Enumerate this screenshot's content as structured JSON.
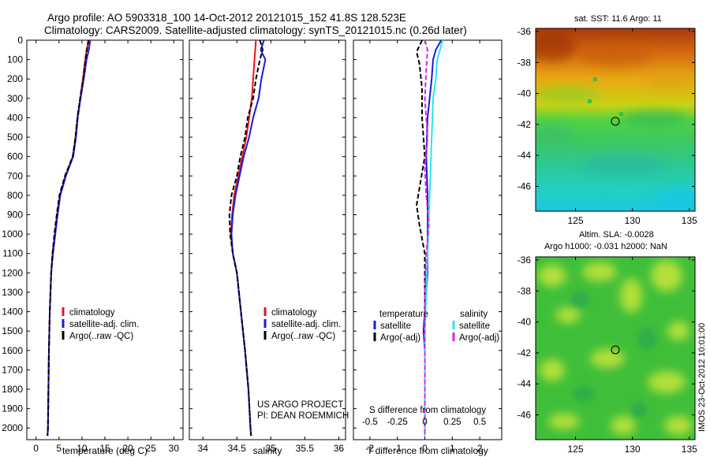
{
  "header": {
    "line1": "Argo profile: AO 5903318_100 14-Oct-2012 20121015_152 41.8S 128.523E",
    "line2": "Climatology: CARS2009. Satellite-adjusted climatology: synTS_20121015.nc (0.26d later)"
  },
  "colors": {
    "red": "#e8141e",
    "blue": "#1a1adc",
    "black": "#000000",
    "cyan": "#26e6f2",
    "magenta": "#e61ee6"
  },
  "depth_ticks": [
    0,
    100,
    200,
    300,
    400,
    500,
    600,
    700,
    800,
    900,
    1000,
    1100,
    1200,
    1300,
    1400,
    1500,
    1600,
    1700,
    1800,
    1900,
    2000
  ],
  "chart_data": [
    {
      "id": "temperature",
      "type": "line",
      "xlabel": "temperature (deg C)",
      "xlim": [
        -2,
        32
      ],
      "ylim": [
        0,
        2060
      ],
      "y_reversed": true,
      "xticks": [
        0,
        5,
        10,
        15,
        20,
        25,
        30
      ],
      "xtick_labels": [
        "0",
        "5",
        "10",
        "15",
        "20",
        "25",
        "30"
      ],
      "legend": [
        "climatology",
        "satellite-adj. clim.",
        "Argo(..raw -QC)"
      ],
      "series": [
        {
          "name": "climatology",
          "color": "red",
          "dash": "",
          "x": [
            11.5,
            11.0,
            10.7,
            10.2,
            9.6,
            9.0,
            8.6,
            8.0,
            6.4,
            5.2,
            4.6,
            4.1,
            3.6,
            3.3,
            3.0,
            2.8,
            2.7,
            2.6,
            2.5
          ],
          "y": [
            0,
            50,
            100,
            200,
            300,
            400,
            500,
            600,
            700,
            800,
            900,
            1000,
            1100,
            1200,
            1400,
            1600,
            1800,
            2000,
            2040
          ]
        },
        {
          "name": "satellite-adj. clim.",
          "color": "blue",
          "dash": "",
          "x": [
            11.8,
            11.5,
            11.0,
            10.4,
            9.7,
            9.1,
            8.7,
            8.1,
            6.5,
            5.3,
            4.7,
            4.2,
            3.7,
            3.3,
            3.0,
            2.8,
            2.7,
            2.6,
            2.5
          ],
          "y": [
            0,
            50,
            100,
            200,
            300,
            400,
            500,
            600,
            700,
            800,
            900,
            1000,
            1100,
            1200,
            1400,
            1600,
            1800,
            2000,
            2040
          ]
        },
        {
          "name": "Argo(..raw -QC)",
          "color": "black",
          "dash": "6,3",
          "x": [
            11.4,
            11.1,
            10.8,
            10.3,
            9.6,
            9.0,
            8.6,
            8.0,
            6.3,
            5.1,
            4.5,
            4.0,
            3.6,
            3.3,
            3.0,
            2.8,
            2.7,
            2.6,
            2.5
          ],
          "y": [
            0,
            50,
            100,
            200,
            300,
            400,
            500,
            600,
            700,
            800,
            900,
            1000,
            1100,
            1200,
            1400,
            1600,
            1800,
            2000,
            2040
          ]
        }
      ]
    },
    {
      "id": "salinity",
      "type": "line",
      "xlabel": "salinity",
      "xlim": [
        33.8,
        36.1
      ],
      "ylim": [
        0,
        2060
      ],
      "y_reversed": true,
      "xticks": [
        34,
        34.5,
        35,
        35.5,
        36
      ],
      "xtick_labels": [
        "34",
        "34.5",
        "35",
        "35.5",
        "36"
      ],
      "legend": [
        "climatology",
        "satellite-adj. clim.",
        "Argo(..raw -QC)"
      ],
      "annotation": [
        "US ARGO PROJECT",
        "PI: DEAN ROEMMICH"
      ],
      "series": [
        {
          "name": "climatology",
          "color": "red",
          "dash": "",
          "x": [
            34.78,
            34.77,
            34.76,
            34.74,
            34.72,
            34.68,
            34.64,
            34.58,
            34.52,
            34.46,
            34.43,
            34.41,
            34.44,
            34.5,
            34.56,
            34.62,
            34.67,
            34.7,
            34.71
          ],
          "y": [
            0,
            50,
            100,
            200,
            300,
            400,
            500,
            600,
            700,
            800,
            900,
            1000,
            1100,
            1200,
            1400,
            1600,
            1800,
            2000,
            2040
          ]
        },
        {
          "name": "satellite-adj. clim.",
          "color": "blue",
          "dash": "",
          "x": [
            34.9,
            34.85,
            34.92,
            34.86,
            34.82,
            34.74,
            34.68,
            34.6,
            34.54,
            34.48,
            34.44,
            34.42,
            34.44,
            34.5,
            34.56,
            34.62,
            34.67,
            34.7,
            34.71
          ],
          "y": [
            0,
            50,
            100,
            200,
            300,
            400,
            500,
            600,
            700,
            800,
            900,
            1000,
            1100,
            1200,
            1400,
            1600,
            1800,
            2000,
            2040
          ]
        },
        {
          "name": "Argo(..raw -QC)",
          "color": "black",
          "dash": "6,3",
          "x": [
            34.84,
            34.88,
            34.84,
            34.78,
            34.74,
            34.66,
            34.62,
            34.55,
            34.5,
            34.42,
            34.39,
            34.4,
            34.44,
            34.5,
            34.56,
            34.62,
            34.67,
            34.7,
            34.71
          ],
          "y": [
            0,
            50,
            100,
            200,
            300,
            400,
            500,
            600,
            700,
            800,
            900,
            1000,
            1100,
            1200,
            1400,
            1600,
            1800,
            2000,
            2040
          ]
        }
      ]
    },
    {
      "id": "difference",
      "type": "line",
      "xlabel": "T difference from climatology",
      "xlabel_top": "S difference from climatology",
      "xlim": [
        -2.6,
        2.8
      ],
      "ylim": [
        0,
        2060
      ],
      "y_reversed": true,
      "xticks": [
        -2,
        -1,
        0,
        1,
        2
      ],
      "xtick_labels": [
        "-2",
        "-1",
        "0",
        "1",
        "2"
      ],
      "s_xticks": [
        -0.5,
        -0.25,
        0,
        0.25,
        0.5
      ],
      "s_xtick_labels": [
        "-0.5",
        "-0.25",
        "0",
        "0.25",
        "0.5"
      ],
      "legend_temperature": [
        "temperature",
        "satellite",
        "Argo(-adj)"
      ],
      "legend_salinity": [
        "salinity",
        "satellite",
        "Argo(-adj)"
      ],
      "series": [
        {
          "name": "satellite",
          "group": "temperature",
          "color": "blue",
          "dash": "",
          "x": [
            0.6,
            0.4,
            0.3,
            0.25,
            0.1,
            0.05,
            0.1,
            0.1,
            0.1,
            0.1,
            0.05,
            0.0,
            -0.05,
            0.0,
            0.0,
            0.0,
            0.0,
            0.0
          ],
          "y": [
            0,
            50,
            100,
            200,
            400,
            600,
            800,
            1000,
            1100,
            1200,
            1300,
            1400,
            1500,
            1600,
            1700,
            1800,
            1900,
            2040
          ]
        },
        {
          "name": "Argo(-adj)",
          "group": "temperature",
          "color": "black",
          "dash": "6,3",
          "x": [
            -0.1,
            -0.3,
            -0.2,
            -0.1,
            -0.1,
            0.0,
            -0.3,
            -0.2,
            0.0,
            0.0,
            0.0,
            0.0,
            0.0,
            0.0
          ],
          "y": [
            0,
            60,
            120,
            250,
            400,
            600,
            850,
            950,
            1100,
            1300,
            1500,
            1700,
            1900,
            2040
          ]
        },
        {
          "name": "satellite",
          "group": "salinity",
          "color": "cyan",
          "dash": "",
          "x": [
            0.65,
            0.55,
            0.45,
            0.4,
            0.3,
            0.25,
            0.2,
            0.15,
            0.1,
            0.05,
            0.0,
            0.0,
            0.0,
            0.0
          ],
          "y": [
            0,
            50,
            100,
            200,
            300,
            500,
            700,
            900,
            1100,
            1300,
            1500,
            1700,
            1900,
            2040
          ]
        },
        {
          "name": "Argo(-adj)",
          "group": "salinity",
          "color": "magenta",
          "dash": "6,3",
          "x": [
            0.0,
            0.1,
            0.05,
            0.0,
            0.1,
            0.0,
            0.05,
            0.15,
            0.05,
            0.0,
            0.0,
            0.0,
            0.0,
            0.0
          ],
          "y": [
            0,
            50,
            150,
            300,
            500,
            650,
            800,
            950,
            1100,
            1300,
            1500,
            1700,
            1900,
            2040
          ]
        }
      ]
    },
    {
      "id": "sst_map",
      "type": "heatmap",
      "title": "sat. SST: 11.6 Argo: 11",
      "xlim": [
        121.5,
        135.5
      ],
      "ylim": [
        -47.6,
        -35.8
      ],
      "xticks": [
        125,
        130,
        135
      ],
      "yticks": [
        -36,
        -38,
        -40,
        -42,
        -44,
        -46
      ],
      "xtick_labels": [
        "125",
        "130",
        "135"
      ],
      "ytick_labels": [
        "-36",
        "-38",
        "-40",
        "-42",
        "-44",
        "-46"
      ],
      "marker": {
        "lon": 128.5,
        "lat": -41.8
      }
    },
    {
      "id": "sla_map",
      "type": "heatmap",
      "title_line1": "Altim. SLA: -0.0028",
      "title_line2": "Argo h1000: -0.031 h2000: NaN",
      "xlim": [
        121.5,
        135.5
      ],
      "ylim": [
        -47.6,
        -35.8
      ],
      "xticks": [
        125,
        130,
        135
      ],
      "yticks": [
        -36,
        -38,
        -40,
        -42,
        -44,
        -46
      ],
      "xtick_labels": [
        "125",
        "130",
        "135"
      ],
      "ytick_labels": [
        "-36",
        "-38",
        "-40",
        "-42",
        "-44",
        "-46"
      ],
      "marker": {
        "lon": 128.5,
        "lat": -41.8
      }
    }
  ],
  "footer_note": "IMOS 23-Oct-2012 10:01:00"
}
